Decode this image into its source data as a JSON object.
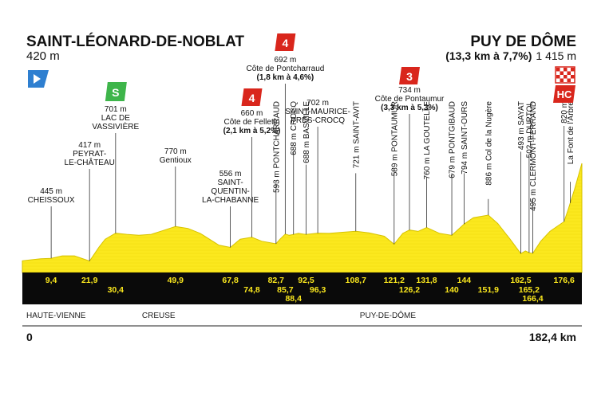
{
  "header": {
    "start_name": "SAINT-LÉONARD-DE-NOBLAT",
    "start_alt": "420 m",
    "finish_name": "PUY DE DÔME",
    "finish_climb": "(13,3 km à 7,7%)",
    "finish_alt": "1 415 m",
    "km_start": "0",
    "km_end": "182,4 km"
  },
  "colors": {
    "profile_fill": "#fbe81e",
    "profile_line": "#d6c200",
    "band": "#0a0a0a",
    "climb_badge": "#d9261c",
    "sprint_badge": "#3eb54a",
    "start_flag": "#2e7fd0",
    "hc_badge": "#d9261c"
  },
  "chart_data": {
    "type": "area",
    "x_unit": "km",
    "y_unit": "m",
    "xlim": [
      0,
      182.4
    ],
    "ylim": [
      300,
      1415
    ],
    "profile": [
      [
        0,
        420
      ],
      [
        3,
        430
      ],
      [
        6,
        440
      ],
      [
        9.4,
        445
      ],
      [
        13,
        470
      ],
      [
        17,
        470
      ],
      [
        21.9,
        417
      ],
      [
        25,
        560
      ],
      [
        27,
        640
      ],
      [
        30.4,
        701
      ],
      [
        34,
        690
      ],
      [
        38,
        680
      ],
      [
        42,
        690
      ],
      [
        46,
        730
      ],
      [
        49.9,
        770
      ],
      [
        54,
        750
      ],
      [
        58,
        700
      ],
      [
        61,
        640
      ],
      [
        64,
        580
      ],
      [
        67.8,
        556
      ],
      [
        71,
        640
      ],
      [
        74.8,
        660
      ],
      [
        78,
        620
      ],
      [
        82.7,
        593
      ],
      [
        84,
        640
      ],
      [
        85.7,
        692
      ],
      [
        87,
        680
      ],
      [
        88.4,
        688
      ],
      [
        90,
        700
      ],
      [
        92.5,
        688
      ],
      [
        96.3,
        702
      ],
      [
        100,
        700
      ],
      [
        104,
        710
      ],
      [
        108.7,
        721
      ],
      [
        113,
        705
      ],
      [
        118,
        670
      ],
      [
        121.2,
        589
      ],
      [
        124,
        700
      ],
      [
        126.2,
        734
      ],
      [
        129,
        720
      ],
      [
        131.8,
        760
      ],
      [
        136,
        700
      ],
      [
        140,
        679
      ],
      [
        144,
        794
      ],
      [
        147,
        860
      ],
      [
        151.9,
        886
      ],
      [
        155,
        800
      ],
      [
        159,
        640
      ],
      [
        162.5,
        493
      ],
      [
        164,
        520
      ],
      [
        165.2,
        502
      ],
      [
        166.4,
        495
      ],
      [
        169,
        620
      ],
      [
        172,
        720
      ],
      [
        176.6,
        820
      ],
      [
        178,
        950
      ],
      [
        180,
        1150
      ],
      [
        182.4,
        1415
      ]
    ],
    "km_labels": [
      {
        "km": 9.4,
        "label": "9,4",
        "row": 1
      },
      {
        "km": 21.9,
        "label": "21,9",
        "row": 1
      },
      {
        "km": 30.4,
        "label": "30,4",
        "row": 2
      },
      {
        "km": 49.9,
        "label": "49,9",
        "row": 1
      },
      {
        "km": 67.8,
        "label": "67,8",
        "row": 1
      },
      {
        "km": 74.8,
        "label": "74,8",
        "row": 2
      },
      {
        "km": 82.7,
        "label": "82,7",
        "row": 1
      },
      {
        "km": 85.7,
        "label": "85,7",
        "row": 2
      },
      {
        "km": 88.4,
        "label": "88,4",
        "row": 3
      },
      {
        "km": 92.5,
        "label": "92,5",
        "row": 1
      },
      {
        "km": 96.3,
        "label": "96,3",
        "row": 2
      },
      {
        "km": 108.7,
        "label": "108,7",
        "row": 1
      },
      {
        "km": 121.2,
        "label": "121,2",
        "row": 1
      },
      {
        "km": 126.2,
        "label": "126,2",
        "row": 2
      },
      {
        "km": 131.8,
        "label": "131,8",
        "row": 1
      },
      {
        "km": 140,
        "label": "140",
        "row": 2
      },
      {
        "km": 144,
        "label": "144",
        "row": 1
      },
      {
        "km": 151.9,
        "label": "151,9",
        "row": 2
      },
      {
        "km": 162.5,
        "label": "162,5",
        "row": 1
      },
      {
        "km": 165.2,
        "label": "165,2",
        "row": 2
      },
      {
        "km": 166.4,
        "label": "166,4",
        "row": 3
      },
      {
        "km": 176.6,
        "label": "176,6",
        "row": 1
      }
    ],
    "waypoints_flat": [
      {
        "km": 9.4,
        "lines": [
          "445 m",
          "CHEISSOUX"
        ]
      },
      {
        "km": 21.9,
        "lines": [
          "417 m",
          "PEYRAT-",
          "LE-CHÂTEAU"
        ]
      },
      {
        "km": 30.4,
        "lines": [
          "701 m",
          "LAC DE",
          "VASSIVIÈRE"
        ]
      },
      {
        "km": 49.9,
        "lines": [
          "770 m",
          "Gentioux"
        ]
      },
      {
        "km": 67.8,
        "lines": [
          "556 m",
          "SAINT-",
          "QUENTIN-",
          "LA-CHABANNE"
        ]
      },
      {
        "km": 74.8,
        "lines": [
          "660 m",
          "Côte de Felletin",
          "(2,1 km à 5,2%)"
        ]
      },
      {
        "km": 85.7,
        "lines": [
          "692 m",
          "Côte de Pontcharraud",
          "(1,8 km à 4,6%)"
        ]
      },
      {
        "km": 96.3,
        "lines": [
          "702 m",
          "SAINT-MAURICE-",
          "PRÈS-CROCQ"
        ]
      },
      {
        "km": 126.2,
        "lines": [
          "734 m",
          "Côte de Pontaumur",
          "(3,3 km à 5,3%)"
        ]
      }
    ],
    "waypoints_vertical": [
      {
        "km": 82.7,
        "text": "593 m PONTCHARRAUD"
      },
      {
        "km": 88.4,
        "text": "688 m CROCQ"
      },
      {
        "km": 92.5,
        "text": "688 m BASVILLE"
      },
      {
        "km": 108.7,
        "text": "721 m SAINT-AVIT"
      },
      {
        "km": 121.2,
        "text": "589 m PONTAUMUR"
      },
      {
        "km": 131.8,
        "text": "760 m LA GOUTELLE"
      },
      {
        "km": 140,
        "text": "679 m PONTGIBAUD"
      },
      {
        "km": 144,
        "text": "794 m SAINT-OURS"
      },
      {
        "km": 151.9,
        "text": "886 m Col de la Nugère"
      },
      {
        "km": 162.5,
        "text": "493 m SAYAT"
      },
      {
        "km": 165.2,
        "text": "502 m DURTOL"
      },
      {
        "km": 166.4,
        "text": "495 m CLERMONT-FERRAND"
      },
      {
        "km": 176.6,
        "text": "820 m"
      },
      {
        "km": 178.6,
        "text": "La Font de l'Arbre"
      }
    ],
    "badges": [
      {
        "type": "start",
        "km": 0,
        "label": ""
      },
      {
        "type": "sprint",
        "km": 30.4,
        "label": "S"
      },
      {
        "type": "climb",
        "km": 74.8,
        "label": "4"
      },
      {
        "type": "climb",
        "km": 85.7,
        "label": "4"
      },
      {
        "type": "climb",
        "km": 126.2,
        "label": "3"
      },
      {
        "type": "hc",
        "km": 182.4,
        "label": "HC"
      }
    ],
    "departments": [
      {
        "km": 0,
        "label": "HAUTE-VIENNE"
      },
      {
        "km": 39,
        "label": "CREUSE"
      },
      {
        "km": 110,
        "label": "PUY-DE-DÔME"
      }
    ]
  }
}
